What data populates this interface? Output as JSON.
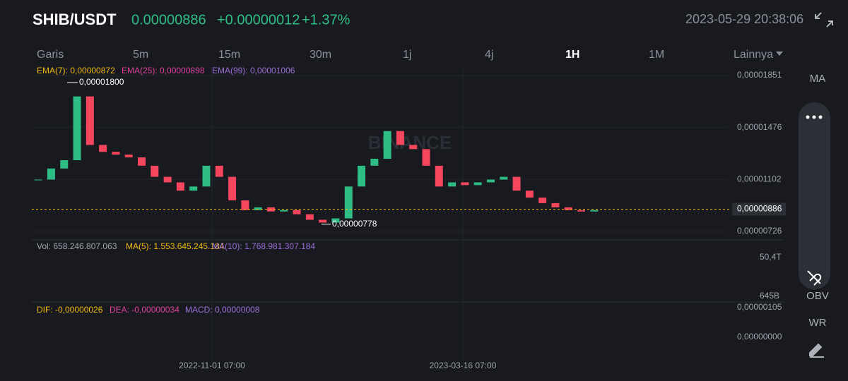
{
  "header": {
    "pair": "SHIB/USDT",
    "price": "0.00000886",
    "change": "+0.00000012",
    "change_pct": "+1.37%",
    "datetime": "2023-05-29 20:38:06"
  },
  "intervals": [
    "Garis",
    "5m",
    "15m",
    "30m",
    "1j",
    "4j",
    "1H",
    "1M",
    "Lainnya"
  ],
  "active_interval": 6,
  "main_chart": {
    "indicators": [
      {
        "label": "EMA(7): 0,00000872",
        "color": "#f0b90b"
      },
      {
        "label": "EMA(25): 0,00000898",
        "color": "#e0409a"
      },
      {
        "label": "EMA(99): 0,00001006",
        "color": "#9b6fd6"
      }
    ],
    "watermark": "BINANCE",
    "ylim": [
      7.26e-06,
      1.851e-05
    ],
    "yticks": [
      {
        "value": 1.851e-05,
        "label": "0,00001851"
      },
      {
        "value": 1.476e-05,
        "label": "0,00001476"
      },
      {
        "value": 1.102e-05,
        "label": "0,00001102"
      },
      {
        "value": 7.26e-06,
        "label": "0,00000726"
      }
    ],
    "high": {
      "value": 1.8e-05,
      "label": "0,00001800"
    },
    "low": {
      "value": 7.78e-06,
      "label": "0,00000778"
    },
    "last_price": {
      "value": 8.86e-06,
      "label": "0,00000886"
    },
    "closes": [
      1.1e-05,
      1.18e-05,
      1.24e-05,
      1.7e-05,
      1.35e-05,
      1.3e-05,
      1.28e-05,
      1.26e-05,
      1.2e-05,
      1.12e-05,
      1.08e-05,
      1.02e-05,
      1.05e-05,
      1.2e-05,
      1.12e-05,
      9.5e-06,
      8.8e-06,
      9e-06,
      8.7e-06,
      8.8e-06,
      8.5e-06,
      8.1e-06,
      7.9e-06,
      8.2e-06,
      1.05e-05,
      1.2e-05,
      1.25e-05,
      1.45e-05,
      1.35e-05,
      1.32e-05,
      1.2e-05,
      1.05e-05,
      1.08e-05,
      1.06e-05,
      1.08e-05,
      1.1e-05,
      1.12e-05,
      1.02e-05,
      9.7e-06,
      9.3e-06,
      9e-06,
      8.8e-06,
      8.7e-06,
      8.8e-06
    ]
  },
  "volume": {
    "indicators": [
      {
        "label": "Vol: 658.246.807.063",
        "color": "#a0a4ab"
      },
      {
        "label": "MA(5): 1.553.645.245.184",
        "color": "#f0b90b"
      },
      {
        "label": "MA(10): 1.768.981.307.184",
        "color": "#9b6fd6"
      }
    ],
    "ticks": [
      "50,4T",
      "645B"
    ]
  },
  "macd": {
    "indicators": [
      {
        "label": "DIF: -0,00000026",
        "color": "#f0b90b"
      },
      {
        "label": "DEA: -0,00000034",
        "color": "#e0409a"
      },
      {
        "label": "MACD: 0,00000008",
        "color": "#9b6fd6"
      }
    ],
    "ticks": [
      "0,00000105",
      "0,00000000"
    ]
  },
  "x_labels": [
    "2022-11-01 07:00",
    "2023-03-16 07:00"
  ],
  "side_items": [
    "MA",
    "OBV",
    "WR"
  ]
}
